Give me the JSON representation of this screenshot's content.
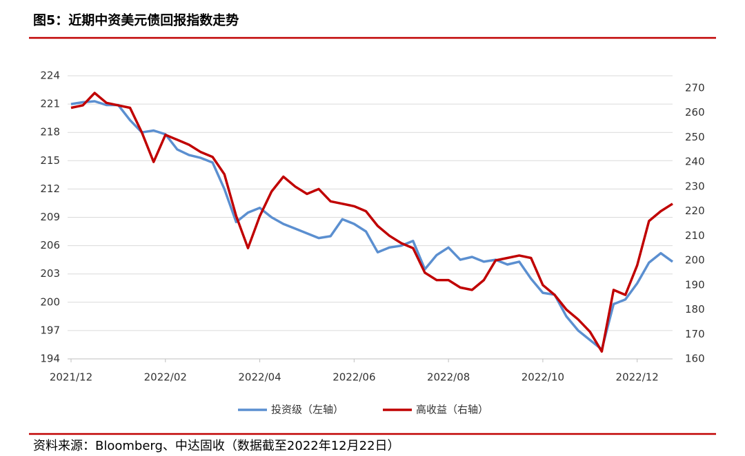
{
  "chart_data": {
    "type": "line",
    "title": "图5：近期中资美元债回报指数走势",
    "source": "资料来源：Bloomberg、中达固收（数据截至2022年12月22日）",
    "categories": [
      "2021/12",
      null,
      null,
      null,
      null,
      null,
      null,
      null,
      "2022/02",
      null,
      null,
      null,
      null,
      null,
      null,
      null,
      "2022/04",
      null,
      null,
      null,
      null,
      null,
      null,
      null,
      "2022/06",
      null,
      null,
      null,
      null,
      null,
      null,
      null,
      "2022/08",
      null,
      null,
      null,
      null,
      null,
      null,
      null,
      "2022/10",
      null,
      null,
      null,
      null,
      null,
      null,
      null,
      "2022/12",
      null,
      null,
      null
    ],
    "series": [
      {
        "name": "投资级（左轴）",
        "color": "#5b8fd0",
        "values": [
          221,
          221.2,
          221.3,
          220.9,
          220.9,
          219.3,
          218,
          218.2,
          217.8,
          216.2,
          215.6,
          215.3,
          214.8,
          212,
          208.5,
          209.5,
          210,
          209,
          208.3,
          207.8,
          207.3,
          206.8,
          207,
          208.8,
          208.3,
          207.5,
          205.3,
          205.8,
          206,
          206.5,
          203.5,
          205,
          205.8,
          204.5,
          204.8,
          204.3,
          204.5,
          204,
          204.3,
          202.5,
          201,
          200.8,
          198.5,
          197,
          196,
          195,
          199.8,
          200.3,
          202,
          204.2,
          205.2,
          204.3
        ]
      },
      {
        "name": "高收益（右轴）",
        "color": "#c00000",
        "axis": "y2",
        "values": [
          262,
          263,
          268,
          264,
          263,
          262,
          252,
          240,
          251,
          249,
          247,
          244,
          242,
          235,
          218,
          205,
          218,
          228,
          234,
          230,
          227,
          229,
          224,
          223,
          222,
          220,
          214,
          210,
          207,
          205,
          195,
          192,
          192,
          189,
          188,
          192,
          200,
          201,
          202,
          201,
          190,
          186,
          180,
          176,
          171,
          163,
          188,
          186,
          198,
          216,
          220,
          223
        ]
      }
    ],
    "ylim": [
      194,
      224
    ],
    "yticks": [
      194,
      197,
      200,
      203,
      206,
      209,
      212,
      215,
      218,
      221,
      224
    ],
    "y2lim": [
      160,
      275
    ],
    "y2ticks": [
      160,
      170,
      180,
      190,
      200,
      210,
      220,
      230,
      240,
      250,
      260,
      270
    ],
    "grid": true,
    "legend": "bottom"
  }
}
